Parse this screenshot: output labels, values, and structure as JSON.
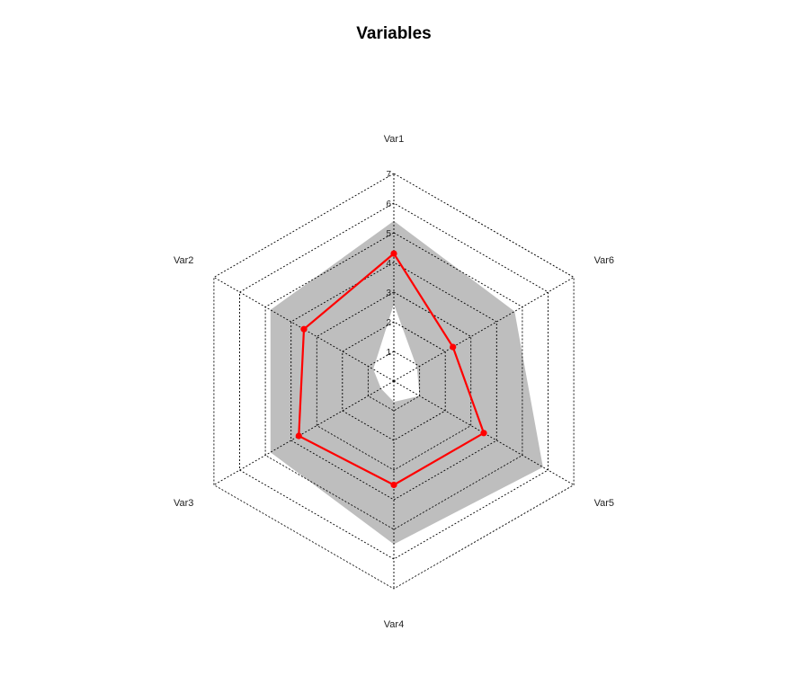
{
  "chart_data": {
    "type": "radar",
    "title": "Variables",
    "axes": [
      "Var1",
      "Var2",
      "Var3",
      "Var4",
      "Var5",
      "Var6"
    ],
    "rlim": [
      0,
      7
    ],
    "ticks": [
      1,
      2,
      3,
      4,
      5,
      6,
      7
    ],
    "grid": "dotted hexagons",
    "band": {
      "lower": [
        2.6,
        0.8,
        0.5,
        0.7,
        1.0,
        0.9
      ],
      "upper": [
        5.4,
        4.8,
        4.8,
        5.5,
        5.8,
        4.7
      ],
      "color": "#bebebe"
    },
    "series": [
      {
        "values": [
          4.3,
          3.5,
          3.7,
          3.5,
          3.5,
          2.3
        ],
        "color": "#ff0000"
      }
    ]
  }
}
